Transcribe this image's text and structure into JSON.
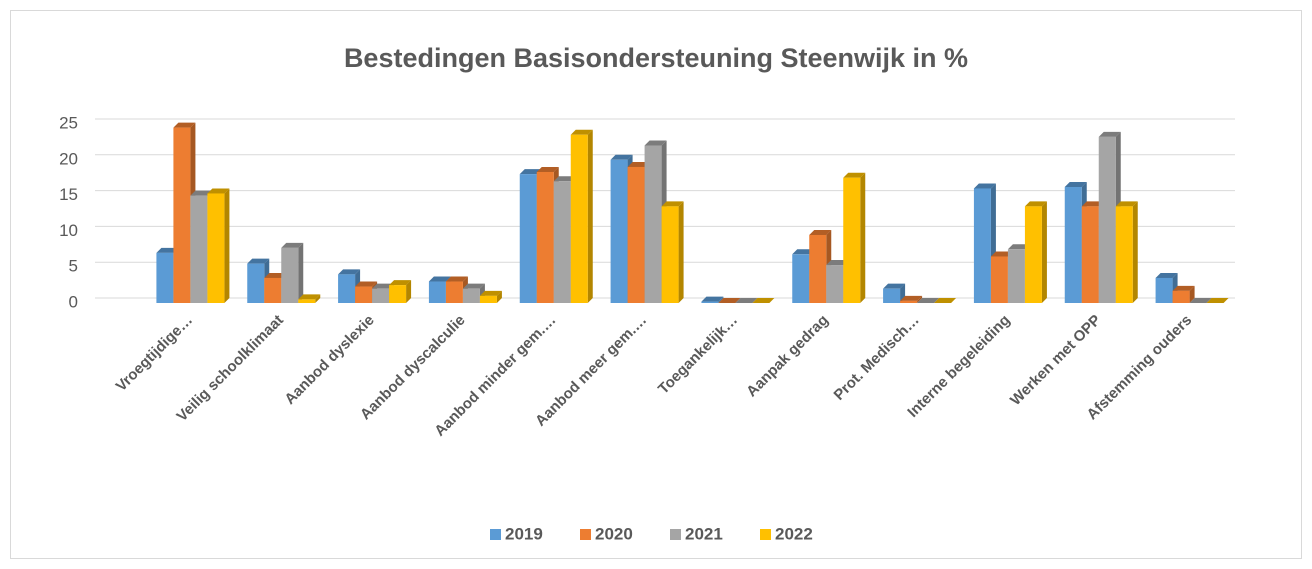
{
  "chart_data": {
    "type": "bar3d",
    "title": "Bestedingen Basisondersteuning Steenwijk in %",
    "categories": [
      "Vroegtijdige…",
      "Veilig schoolklimaat",
      "Aanbod dyslexie",
      "Aanbod dyscalculie",
      "Aanbod minder gem.…",
      "Aanbod meer gem.…",
      "Toegankelijk…",
      "Aanpak gedrag",
      "Prot. Medisch…",
      "Interne begeleiding",
      "Werken met OPP",
      "Afstemming ouders"
    ],
    "series": [
      {
        "name": "2019",
        "color": "#5b9bd5",
        "values": [
          7,
          5.5,
          4,
          3,
          18,
          20,
          0.2,
          6.8,
          2,
          16,
          16.2,
          3.5
        ]
      },
      {
        "name": "2020",
        "color": "#ed7d31",
        "values": [
          24.5,
          3.5,
          2.3,
          3,
          18.3,
          19,
          0,
          9.5,
          0.3,
          6.5,
          13.5,
          1.7
        ]
      },
      {
        "name": "2021",
        "color": "#a5a5a5",
        "values": [
          15,
          7.7,
          2,
          2,
          17,
          22,
          0,
          5.3,
          0,
          7.5,
          23.2,
          0
        ]
      },
      {
        "name": "2022",
        "color": "#ffc000",
        "values": [
          15.3,
          0.5,
          2.5,
          1,
          23.5,
          13.5,
          0,
          17.5,
          0,
          13.5,
          13.5,
          0
        ]
      }
    ],
    "ylim": [
      0,
      25
    ],
    "yticks": [
      0,
      5,
      10,
      15,
      20,
      25
    ],
    "grid": true,
    "legend": "bottom"
  }
}
